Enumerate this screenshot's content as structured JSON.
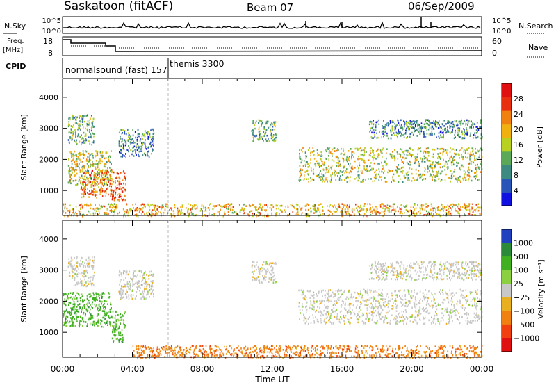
{
  "header": {
    "station": "Saskatoon (fitACF)",
    "beam": "Beam 07",
    "date": "06/Sep/2009"
  },
  "top_panels": {
    "nsky_label": "N.Sky",
    "nsky_ticks": [
      "10^5",
      "10^0"
    ],
    "nsearch_label": "N.Search",
    "freq_label_1": "Freq.",
    "freq_label_2": "[MHz]",
    "freq_ticks": [
      "18",
      "8"
    ],
    "nave_ticks": [
      "60",
      "0"
    ],
    "nave_label": "Nave",
    "cpid_label": "CPID",
    "cpid_segments": [
      {
        "name": "normalsound (fast) 157",
        "start": "00:00",
        "end": "06:00"
      },
      {
        "name": "themis 3300",
        "start": "06:00",
        "end": "24:00"
      }
    ]
  },
  "power_colorbar": {
    "label": "Power [dB]",
    "ticks": [
      "4",
      "8",
      "12",
      "16",
      "20",
      "24",
      "28"
    ],
    "colors": [
      "#1010e0",
      "#2a55b8",
      "#3d8a80",
      "#5aa858",
      "#b8d020",
      "#f0b010",
      "#f08010",
      "#e83010",
      "#e01010"
    ]
  },
  "velocity_colorbar": {
    "label": "Velocity [m s⁻¹]",
    "ticks": [
      "1000",
      "500",
      "100",
      "25",
      "−25",
      "−100",
      "−500",
      "−1000"
    ],
    "colors": [
      "#2040c0",
      "#2a8a3a",
      "#40b020",
      "#8ad040",
      "#c8c8c8",
      "#e8b020",
      "#f08010",
      "#f04010",
      "#e01010"
    ]
  },
  "chart_data": [
    {
      "type": "heatmap",
      "quantity": "Power",
      "ylabel": "Slant Range [km]",
      "ylim": [
        200,
        4600
      ],
      "yticks": [
        "1000",
        "2000",
        "3000",
        "4000"
      ],
      "xlim": [
        "00:00",
        "24:00"
      ],
      "scatter_regions": [
        {
          "t_start": 0.3,
          "t_end": 1.8,
          "r_min": 2500,
          "r_max": 3450,
          "power_dB": 14
        },
        {
          "t_start": 0.3,
          "t_end": 2.8,
          "r_min": 1200,
          "r_max": 2300,
          "power_dB": 18
        },
        {
          "t_start": 1.0,
          "t_end": 2.8,
          "r_min": 800,
          "r_max": 1700,
          "power_dB": 26
        },
        {
          "t_start": 2.8,
          "t_end": 3.6,
          "r_min": 700,
          "r_max": 1700,
          "power_dB": 24
        },
        {
          "t_start": 3.2,
          "t_end": 5.2,
          "r_min": 2100,
          "r_max": 3000,
          "power_dB": 10
        },
        {
          "t_start": 10.8,
          "t_end": 12.2,
          "r_min": 2600,
          "r_max": 3300,
          "power_dB": 14
        },
        {
          "t_start": 13.5,
          "t_end": 24.0,
          "r_min": 1300,
          "r_max": 2400,
          "power_dB": 18
        },
        {
          "t_start": 17.5,
          "t_end": 24.0,
          "r_min": 2700,
          "r_max": 3300,
          "power_dB": 8
        },
        {
          "t_start": 0.0,
          "t_end": 24.0,
          "r_min": 200,
          "r_max": 600,
          "power_dB": 20
        }
      ]
    },
    {
      "type": "heatmap",
      "quantity": "Velocity",
      "ylabel": "Slant Range [km]",
      "ylim": [
        200,
        4600
      ],
      "yticks": [
        "1000",
        "2000",
        "3000",
        "4000"
      ],
      "xlim": [
        "00:00",
        "24:00"
      ],
      "xticks": [
        "00:00",
        "04:00",
        "08:00",
        "12:00",
        "16:00",
        "20:00",
        "00:00"
      ],
      "xlabel": "Time UT",
      "scatter_regions": [
        {
          "t_start": 0.3,
          "t_end": 1.8,
          "r_min": 2500,
          "r_max": 3450,
          "velocity": 0
        },
        {
          "t_start": 0.0,
          "t_end": 2.8,
          "r_min": 1200,
          "r_max": 2300,
          "velocity": 150
        },
        {
          "t_start": 2.8,
          "t_end": 3.6,
          "r_min": 700,
          "r_max": 1700,
          "velocity": 200
        },
        {
          "t_start": 3.2,
          "t_end": 5.2,
          "r_min": 2100,
          "r_max": 3000,
          "velocity": 0
        },
        {
          "t_start": 10.8,
          "t_end": 12.2,
          "r_min": 2600,
          "r_max": 3300,
          "velocity": 0
        },
        {
          "t_start": 13.5,
          "t_end": 24.0,
          "r_min": 1300,
          "r_max": 2400,
          "velocity": 0
        },
        {
          "t_start": 17.5,
          "t_end": 24.0,
          "r_min": 2700,
          "r_max": 3300,
          "velocity": 0
        },
        {
          "t_start": 4.0,
          "t_end": 24.0,
          "r_min": 200,
          "r_max": 600,
          "velocity": -80
        }
      ]
    }
  ]
}
